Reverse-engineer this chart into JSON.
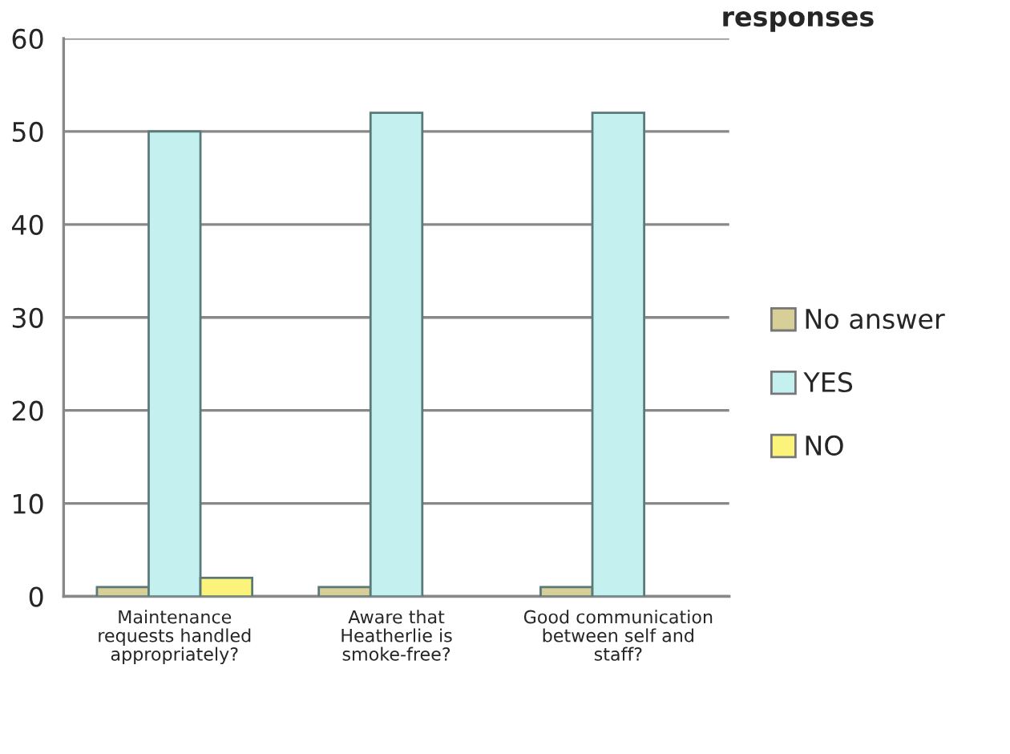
{
  "chart_data": {
    "type": "bar",
    "title": "responses",
    "categories": [
      "Maintenance requests handled appropriately?",
      "Aware that Heatherlie is smoke-free?",
      "Good communication between self and staff?"
    ],
    "series": [
      {
        "name": "No answer",
        "color": "#d8cf98",
        "values": [
          1,
          1,
          1
        ]
      },
      {
        "name": "YES",
        "color": "#c4f0f0",
        "values": [
          50,
          52,
          52
        ]
      },
      {
        "name": "NO",
        "color": "#fbf37a",
        "values": [
          2,
          null,
          null
        ]
      }
    ],
    "ylim": [
      0,
      60
    ],
    "yticks": [
      0,
      10,
      20,
      30,
      40,
      50,
      60
    ],
    "grid": "y",
    "legend": "right"
  }
}
